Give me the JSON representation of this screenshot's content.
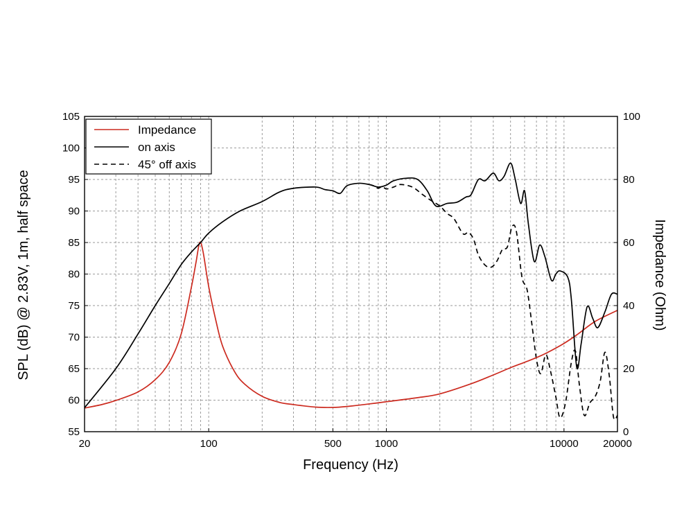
{
  "chart_data": {
    "type": "line",
    "title": "",
    "xlabel": "Frequency (Hz)",
    "ylabel_left": "SPL (dB) @ 2.83V, 1m, half space",
    "ylabel_right": "Impedance (Ohm)",
    "xscale": "log",
    "xlim": [
      20,
      20000
    ],
    "ylim_left": [
      55,
      105
    ],
    "ylim_right": [
      0,
      100
    ],
    "grid": true,
    "legend_position": "top-left",
    "x_tick_labels": [
      {
        "value": 20,
        "label": "20"
      },
      {
        "value": 100,
        "label": "100"
      },
      {
        "value": 500,
        "label": "500"
      },
      {
        "value": 1000,
        "label": "1000"
      },
      {
        "value": 10000,
        "label": "10000"
      },
      {
        "value": 20000,
        "label": "20000"
      }
    ],
    "y_left_ticks": [
      55,
      60,
      65,
      70,
      75,
      80,
      85,
      90,
      95,
      100,
      105
    ],
    "y_right_ticks": [
      0,
      20,
      40,
      60,
      80,
      100
    ],
    "colors": {
      "impedance": "#cc2a1f",
      "on_axis": "#000000",
      "off_axis": "#000000",
      "grid": "#9a9a9a"
    },
    "series": [
      {
        "name": "Impedance",
        "axis": "right",
        "style": "solid",
        "color": "#cc2a1f",
        "points": [
          [
            20,
            7.5
          ],
          [
            25,
            8.6
          ],
          [
            30,
            9.9
          ],
          [
            40,
            12.6
          ],
          [
            50,
            16.5
          ],
          [
            60,
            22
          ],
          [
            70,
            31
          ],
          [
            80,
            46
          ],
          [
            85,
            54
          ],
          [
            89,
            60
          ],
          [
            93,
            57
          ],
          [
            100,
            46
          ],
          [
            110,
            35
          ],
          [
            120,
            27
          ],
          [
            140,
            19
          ],
          [
            160,
            15
          ],
          [
            200,
            11.2
          ],
          [
            250,
            9.3
          ],
          [
            300,
            8.6
          ],
          [
            400,
            7.8
          ],
          [
            500,
            7.7
          ],
          [
            600,
            8
          ],
          [
            800,
            8.8
          ],
          [
            1000,
            9.5
          ],
          [
            1500,
            10.8
          ],
          [
            2000,
            12
          ],
          [
            3000,
            15.2
          ],
          [
            4000,
            18
          ],
          [
            5000,
            20.3
          ],
          [
            6000,
            22
          ],
          [
            7000,
            23.5
          ],
          [
            8000,
            25
          ],
          [
            10000,
            28
          ],
          [
            12000,
            31
          ],
          [
            15000,
            35
          ],
          [
            20000,
            38.5
          ]
        ]
      },
      {
        "name": "on axis",
        "axis": "left",
        "style": "solid",
        "color": "#000000",
        "points": [
          [
            20,
            58.8
          ],
          [
            30,
            65
          ],
          [
            40,
            70.5
          ],
          [
            50,
            75
          ],
          [
            60,
            78.5
          ],
          [
            70,
            81.5
          ],
          [
            80,
            83.5
          ],
          [
            90,
            85
          ],
          [
            100,
            86.5
          ],
          [
            120,
            88.3
          ],
          [
            150,
            90
          ],
          [
            200,
            91.5
          ],
          [
            250,
            93
          ],
          [
            300,
            93.6
          ],
          [
            400,
            93.8
          ],
          [
            450,
            93.4
          ],
          [
            500,
            93.2
          ],
          [
            550,
            92.8
          ],
          [
            600,
            94
          ],
          [
            700,
            94.4
          ],
          [
            800,
            94.2
          ],
          [
            900,
            93.8
          ],
          [
            1000,
            94.1
          ],
          [
            1100,
            94.8
          ],
          [
            1300,
            95.2
          ],
          [
            1500,
            95
          ],
          [
            1700,
            93.2
          ],
          [
            1900,
            90.8
          ],
          [
            2200,
            91.2
          ],
          [
            2500,
            91.4
          ],
          [
            2800,
            92.2
          ],
          [
            3000,
            92.6
          ],
          [
            3300,
            95
          ],
          [
            3600,
            94.8
          ],
          [
            4000,
            96
          ],
          [
            4300,
            94.8
          ],
          [
            4600,
            95.5
          ],
          [
            5000,
            97.6
          ],
          [
            5300,
            95.2
          ],
          [
            5700,
            91.2
          ],
          [
            6000,
            93.2
          ],
          [
            6300,
            88
          ],
          [
            6800,
            82
          ],
          [
            7300,
            84.6
          ],
          [
            7800,
            82.8
          ],
          [
            8500,
            79
          ],
          [
            9000,
            80
          ],
          [
            9500,
            80.5
          ],
          [
            10500,
            79.5
          ],
          [
            11000,
            76
          ],
          [
            11800,
            65.2
          ],
          [
            12500,
            69
          ],
          [
            13500,
            74.8
          ],
          [
            14500,
            73
          ],
          [
            15500,
            71.5
          ],
          [
            17000,
            74
          ],
          [
            18500,
            76.8
          ],
          [
            20000,
            76.8
          ]
        ]
      },
      {
        "name": "45° off axis",
        "axis": "left",
        "style": "dashed",
        "color": "#000000",
        "points": [
          [
            800,
            94.2
          ],
          [
            850,
            94
          ],
          [
            900,
            93.6
          ],
          [
            950,
            93.9
          ],
          [
            1000,
            93.5
          ],
          [
            1100,
            93.8
          ],
          [
            1200,
            94.2
          ],
          [
            1400,
            93.8
          ],
          [
            1600,
            92.6
          ],
          [
            1800,
            91.6
          ],
          [
            2000,
            90.8
          ],
          [
            2200,
            89.6
          ],
          [
            2400,
            88.8
          ],
          [
            2700,
            86.4
          ],
          [
            2900,
            86.6
          ],
          [
            3100,
            85.5
          ],
          [
            3300,
            83
          ],
          [
            3600,
            81.4
          ],
          [
            3900,
            81.1
          ],
          [
            4200,
            82.1
          ],
          [
            4500,
            83.9
          ],
          [
            4800,
            84.3
          ],
          [
            5100,
            87.5
          ],
          [
            5400,
            86.7
          ],
          [
            5800,
            79.5
          ],
          [
            6200,
            77.5
          ],
          [
            6600,
            72
          ],
          [
            7000,
            66.5
          ],
          [
            7400,
            64.2
          ],
          [
            7900,
            67.2
          ],
          [
            8400,
            64.6
          ],
          [
            9000,
            60.5
          ],
          [
            9500,
            57.2
          ],
          [
            10200,
            59.6
          ],
          [
            11000,
            66
          ],
          [
            11600,
            67.8
          ],
          [
            12200,
            62.5
          ],
          [
            13000,
            57.6
          ],
          [
            14000,
            59.6
          ],
          [
            15000,
            60.6
          ],
          [
            16000,
            63
          ],
          [
            17000,
            67.6
          ],
          [
            18000,
            63.8
          ],
          [
            19000,
            57.3
          ],
          [
            20000,
            57.6
          ]
        ]
      }
    ]
  }
}
